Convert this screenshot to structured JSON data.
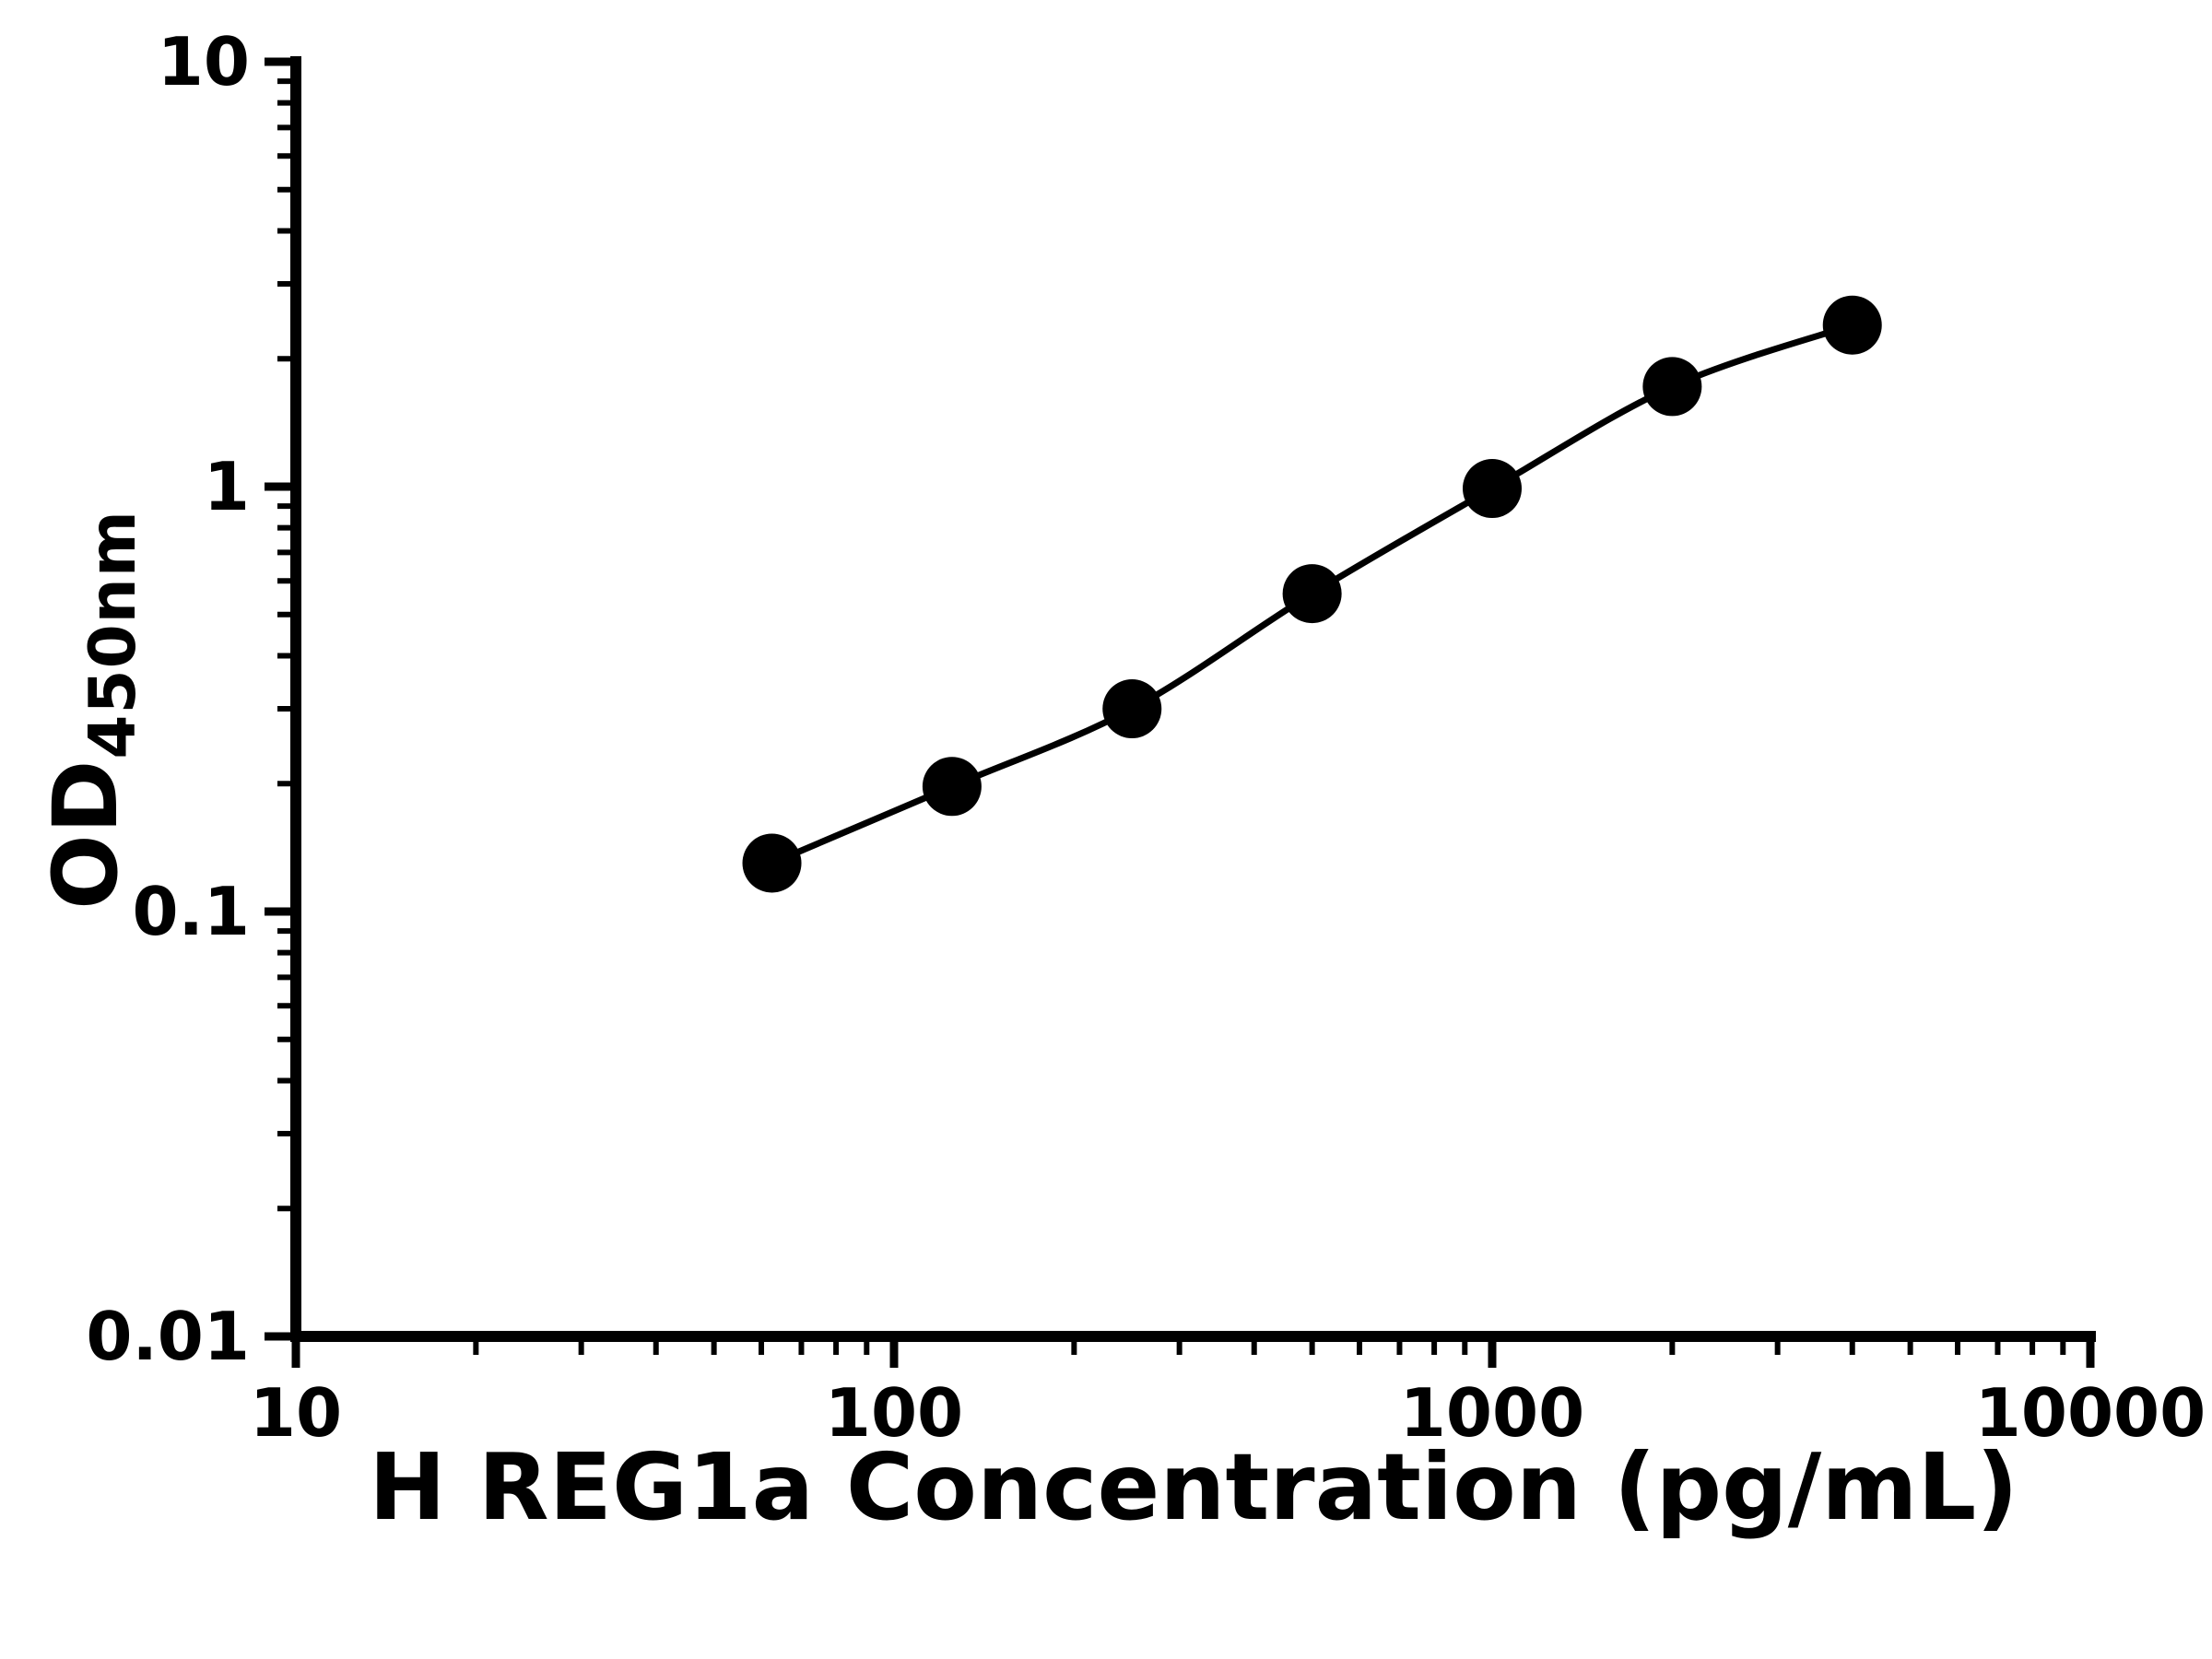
{
  "chart_data": {
    "type": "line",
    "title": "",
    "xlabel": "H REG1a Concentration (pg/mL)",
    "ylabel": "OD450nm",
    "ylabel_main": "OD",
    "ylabel_sub": "450nm",
    "xscale": "log",
    "yscale": "log",
    "xlim": [
      10,
      10000
    ],
    "ylim": [
      0.01,
      10
    ],
    "x": [
      62.5,
      125,
      250,
      500,
      1000,
      2000,
      4000
    ],
    "y": [
      0.13,
      0.197,
      0.3,
      0.56,
      0.99,
      1.72,
      2.4
    ],
    "x_ticks": [
      10,
      100,
      1000,
      10000
    ],
    "x_tick_labels": [
      "10",
      "100",
      "1000",
      "10000"
    ],
    "y_ticks": [
      0.01,
      0.1,
      1,
      10
    ],
    "y_tick_labels": [
      "0.01",
      "0.1",
      "1",
      "10"
    ],
    "grid": false,
    "legend": "none",
    "line_color": "#000000",
    "marker": "circle",
    "marker_color": "#000000",
    "axis_color": "#000000",
    "background_color": "#ffffff"
  }
}
